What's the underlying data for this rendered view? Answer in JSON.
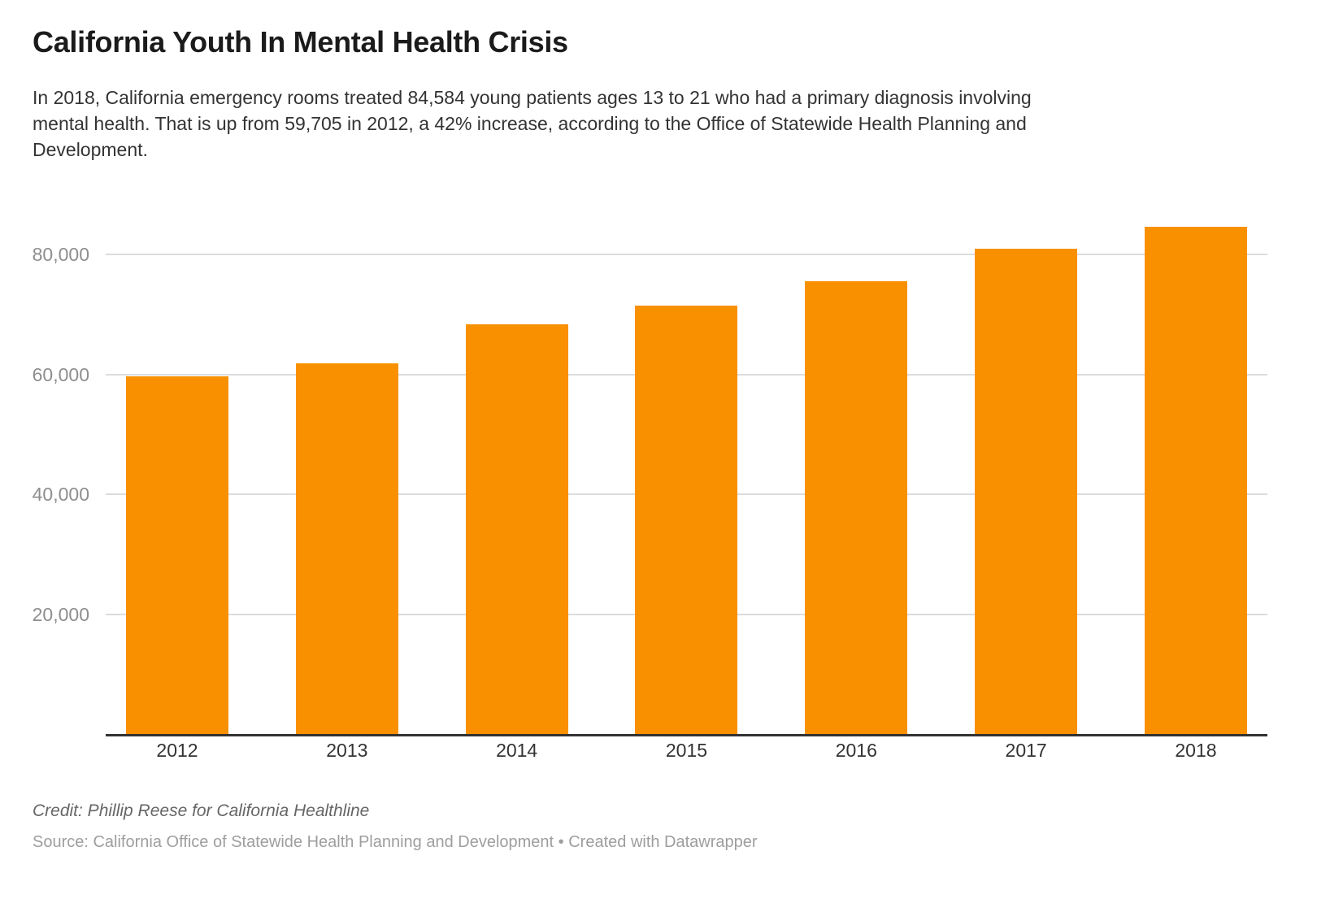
{
  "header": {
    "title": "California Youth In Mental Health Crisis",
    "description_lines": [
      "In 2018, California emergency rooms treated 84,584 young patients ages 13 to 21 who had a primary diagnosis involving",
      "mental health. That is up from 59,705 in 2012, a 42% increase, according to the Office of Statewide Health Planning and",
      "Development."
    ]
  },
  "chart_data": {
    "type": "bar",
    "title": "California Youth In Mental Health Crisis",
    "categories": [
      "2012",
      "2013",
      "2014",
      "2015",
      "2016",
      "2017",
      "2018"
    ],
    "values": [
      59705,
      61900,
      68400,
      71500,
      75500,
      80900,
      84584
    ],
    "bar_color": "#f89000",
    "grid_color": "#dcdcdc",
    "axis_color": "#333333",
    "ylim": [
      0,
      88500
    ],
    "y_ticks": [
      {
        "value": 20000,
        "label": "20,000"
      },
      {
        "value": 40000,
        "label": "40,000"
      },
      {
        "value": 60000,
        "label": "60,000"
      },
      {
        "value": 80000,
        "label": "80,000"
      }
    ],
    "grid": "horizontal",
    "legend": "none",
    "xlabel": "",
    "ylabel": ""
  },
  "footer": {
    "credit": "Credit: Phillip Reese for California Healthline",
    "source": "Source: California Office of Statewide Health Planning and Development • Created with Datawrapper"
  }
}
